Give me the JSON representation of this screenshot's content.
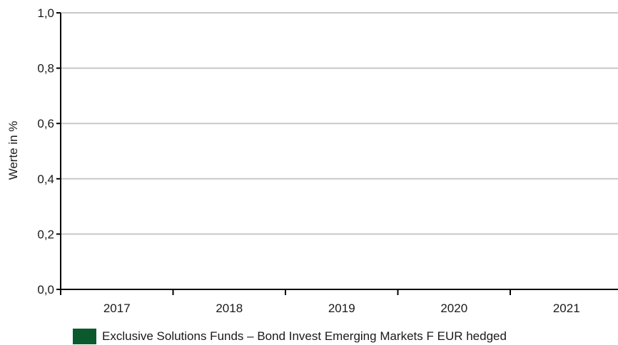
{
  "chart_data": {
    "type": "bar",
    "categories": [
      "2017",
      "2018",
      "2019",
      "2020",
      "2021"
    ],
    "series": [
      {
        "name": "Exclusive Solutions Funds – Bond Invest Emerging Markets F EUR hedged",
        "values": [
          null,
          null,
          null,
          null,
          null
        ],
        "color": "#0b5a2e"
      }
    ],
    "ylabel": "Werte in %",
    "xlabel": "",
    "ylim": [
      0,
      1.0
    ],
    "yticks": [
      0.0,
      0.2,
      0.4,
      0.6,
      0.8,
      1.0
    ],
    "ytick_labels": [
      "0,0",
      "0,2",
      "0,4",
      "0,6",
      "0,8",
      "1,0"
    ],
    "grid": true,
    "legend_position": "bottom-center"
  }
}
